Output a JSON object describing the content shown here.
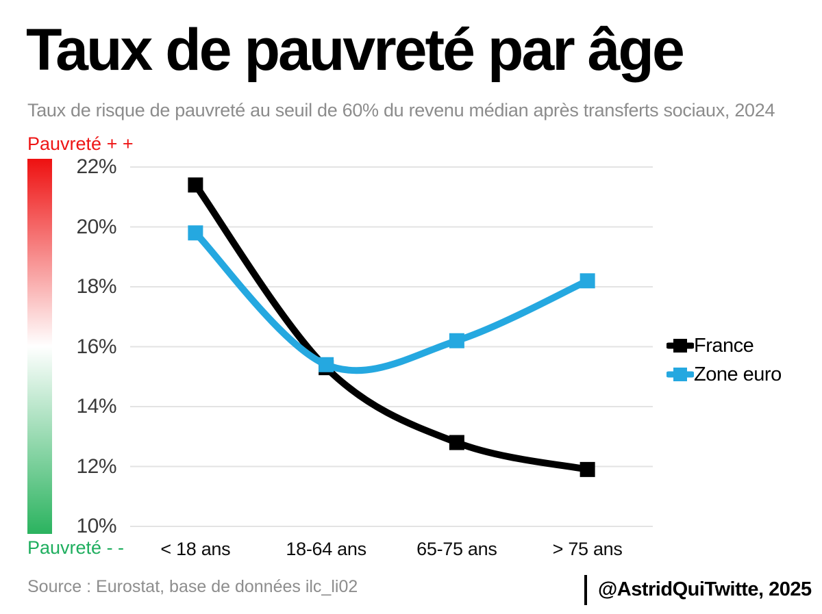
{
  "header": {
    "title": "Taux de pauvreté par âge",
    "subtitle": "Taux de risque de pauvreté au seuil de 60% du revenu médian après transferts sociaux, 2024"
  },
  "colorbar": {
    "top_label": "Pauvreté + +",
    "bottom_label": "Pauvreté - -",
    "top_color": "#ee1111",
    "middle_color": "#ffffff",
    "bottom_color": "#2bb35f"
  },
  "chart_data": {
    "type": "line",
    "title": "Taux de pauvreté par âge",
    "categories": [
      "< 18 ans",
      "18-64 ans",
      "65-75 ans",
      "> 75 ans"
    ],
    "series": [
      {
        "name": "France",
        "color": "#000000",
        "values": [
          21.4,
          15.3,
          12.8,
          11.9
        ]
      },
      {
        "name": "Zone euro",
        "color": "#25a8e0",
        "values": [
          19.8,
          15.4,
          16.2,
          18.2
        ]
      }
    ],
    "ylim": [
      10,
      22
    ],
    "yticks": [
      22,
      20,
      18,
      16,
      14,
      12,
      10
    ],
    "ytick_suffix": "%",
    "xlabel": "",
    "ylabel": "",
    "grid": "horizontal",
    "gridline_color": "#e3e3e3",
    "legend_position": "right",
    "marker": "square"
  },
  "footer": {
    "source": "Source : Eurostat, base de données ilc_li02",
    "credit": "@AstridQuiTwitte, 2025"
  }
}
